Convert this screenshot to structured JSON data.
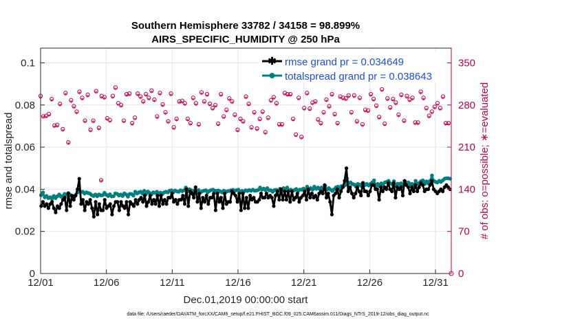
{
  "chart_data": {
    "type": "line",
    "title": "Southern Hemisphere 33782 / 34158 = 98.899%",
    "subtitle": "AIRS_SPECIFIC_HUMIDITY @ 250 hPa",
    "xlabel": "Dec.01,2019 00:00:00 start",
    "ylabel": "rmse and totalspread",
    "ylabel_right": "# of obs: o=possible; ∗=evaluated",
    "footnote": "data file: /Users/raeder/DAI/ATM_forcXX/CAM6_setup/f.e21.FHIST_BGC.f09_025.CAM6assim.011/Diags_NTrS_2019-12/obs_diag_output.nc",
    "xlim": [
      0,
      31.2
    ],
    "ylim": [
      0,
      0.107
    ],
    "ylim_right": [
      0,
      374.5
    ],
    "x_ticks": [
      0,
      5,
      10,
      15,
      20,
      25,
      30
    ],
    "x_tick_labels": [
      "12/01",
      "12/06",
      "12/11",
      "12/16",
      "12/21",
      "12/26",
      "12/31"
    ],
    "y_ticks": [
      0,
      0.02,
      0.04,
      0.06,
      0.08,
      0.1
    ],
    "y_tick_labels": [
      "0",
      "0.02",
      "0.04",
      "0.06",
      "0.08",
      "0.1"
    ],
    "y_ticks_right": [
      0,
      70,
      140,
      210,
      280,
      350
    ],
    "y_tick_labels_right": [
      "0",
      "70",
      "140",
      "210",
      "280",
      "350"
    ],
    "colors": {
      "rmse": "#000000",
      "spread": "#008080",
      "obs": "#c4004a",
      "legend_text": "#1a4fe0",
      "axis": "#262626"
    },
    "series": [
      {
        "name": "rmse grand pr = 0.034649",
        "values": [
          0.032,
          0.034,
          0.032,
          0.033,
          0.031,
          0.033,
          0.034,
          0.031,
          0.029,
          0.032,
          0.031,
          0.033,
          0.035,
          0.036,
          0.03,
          0.038,
          0.032,
          0.037,
          0.035,
          0.037,
          0.04,
          0.045,
          0.033,
          0.035,
          0.03,
          0.034,
          0.033,
          0.035,
          0.031,
          0.027,
          0.034,
          0.028,
          0.033,
          0.03,
          0.03,
          0.035,
          0.031,
          0.032,
          0.033,
          0.028,
          0.032,
          0.034,
          0.034,
          0.03,
          0.034,
          0.032,
          0.031,
          0.034,
          0.028,
          0.034,
          0.033,
          0.032,
          0.035,
          0.033,
          0.035,
          0.036,
          0.034,
          0.037,
          0.032,
          0.034,
          0.037,
          0.033,
          0.035,
          0.033,
          0.037,
          0.032,
          0.037,
          0.033,
          0.035,
          0.033,
          0.036,
          0.036,
          0.038,
          0.034,
          0.035,
          0.033,
          0.035,
          0.035,
          0.037,
          0.033,
          0.04,
          0.032,
          0.039,
          0.038,
          0.036,
          0.041,
          0.034,
          0.038,
          0.031,
          0.036,
          0.034,
          0.037,
          0.033,
          0.036,
          0.036,
          0.038,
          0.03,
          0.038,
          0.034,
          0.036,
          0.031,
          0.038,
          0.033,
          0.034,
          0.034,
          0.039,
          0.038,
          0.037,
          0.034,
          0.038,
          0.03,
          0.038,
          0.031,
          0.036,
          0.031,
          0.037,
          0.035,
          0.036,
          0.034,
          0.034,
          0.035,
          0.038,
          0.036,
          0.036,
          0.038,
          0.036,
          0.037,
          0.036,
          0.032,
          0.037,
          0.039,
          0.035,
          0.04,
          0.035,
          0.039,
          0.035,
          0.039,
          0.034,
          0.039,
          0.035,
          0.036,
          0.038,
          0.034,
          0.036,
          0.037,
          0.039,
          0.035,
          0.04,
          0.036,
          0.038,
          0.036,
          0.037,
          0.035,
          0.038,
          0.039,
          0.038,
          0.042,
          0.036,
          0.038,
          0.034,
          0.028,
          0.037,
          0.038,
          0.04,
          0.036,
          0.039,
          0.041,
          0.044,
          0.05,
          0.039,
          0.041,
          0.038,
          0.036,
          0.038,
          0.041,
          0.039,
          0.037,
          0.043,
          0.039,
          0.039,
          0.037,
          0.039,
          0.042,
          0.042,
          0.04,
          0.04,
          0.035,
          0.041,
          0.039,
          0.041,
          0.04,
          0.043,
          0.04,
          0.039,
          0.043,
          0.036,
          0.041,
          0.04,
          0.041,
          0.037,
          0.044,
          0.042,
          0.041,
          0.038,
          0.041,
          0.039,
          0.042,
          0.039,
          0.041,
          0.043,
          0.042,
          0.039,
          0.04,
          0.04,
          0.042,
          0.044,
          0.04,
          0.039,
          0.038,
          0.039,
          0.04,
          0.039,
          0.041,
          0.042,
          0.041,
          0.04
        ]
      },
      {
        "name": "totalspread grand pr = 0.038643",
        "values": [
          0.0372,
          0.0385,
          0.0362,
          0.0368,
          0.0358,
          0.0362,
          0.0355,
          0.0368,
          0.0358,
          0.0367,
          0.0375,
          0.0365,
          0.0368,
          0.0378,
          0.0374,
          0.0382,
          0.0374,
          0.0368,
          0.0366,
          0.0372,
          0.0384,
          0.0395,
          0.0387,
          0.0388,
          0.038,
          0.0385,
          0.0382,
          0.0379,
          0.0372,
          0.0368,
          0.0375,
          0.0367,
          0.0375,
          0.0371,
          0.0372,
          0.0383,
          0.0374,
          0.0368,
          0.0376,
          0.0366,
          0.0367,
          0.038,
          0.0378,
          0.037,
          0.0375,
          0.0368,
          0.038,
          0.0375,
          0.0365,
          0.0378,
          0.0377,
          0.037,
          0.0388,
          0.038,
          0.0385,
          0.0388,
          0.038,
          0.0392,
          0.0378,
          0.0389,
          0.0382,
          0.0376,
          0.0385,
          0.0383,
          0.0388,
          0.0375,
          0.0384,
          0.0378,
          0.0385,
          0.0388,
          0.0385,
          0.0393,
          0.0395,
          0.0385,
          0.0394,
          0.039,
          0.0388,
          0.0395,
          0.0391,
          0.0395,
          0.0408,
          0.039,
          0.04,
          0.0395,
          0.0384,
          0.0396,
          0.0394,
          0.0396,
          0.0384,
          0.039,
          0.0393,
          0.0395,
          0.0385,
          0.0392,
          0.0396,
          0.0398,
          0.0393,
          0.0392,
          0.0394,
          0.039,
          0.0385,
          0.0393,
          0.0387,
          0.0391,
          0.0392,
          0.0395,
          0.0397,
          0.0393,
          0.0395,
          0.0398,
          0.0387,
          0.0392,
          0.0388,
          0.0395,
          0.0392,
          0.0396,
          0.0393,
          0.0398,
          0.0393,
          0.0394,
          0.0397,
          0.0408,
          0.0398,
          0.0403,
          0.0396,
          0.0405,
          0.0395,
          0.0395,
          0.0388,
          0.0396,
          0.0397,
          0.0392,
          0.0402,
          0.0392,
          0.0405,
          0.0392,
          0.0408,
          0.0395,
          0.0398,
          0.0392,
          0.0396,
          0.0401,
          0.0392,
          0.0398,
          0.0398,
          0.0403,
          0.0398,
          0.0412,
          0.0398,
          0.0405,
          0.0398,
          0.0412,
          0.0402,
          0.0408,
          0.04,
          0.0408,
          0.0405,
          0.0415,
          0.0398,
          0.0405,
          0.0398,
          0.0392,
          0.04,
          0.0409,
          0.0412,
          0.0402,
          0.0415,
          0.0412,
          0.042,
          0.0452,
          0.0428,
          0.0432,
          0.0425,
          0.0422,
          0.0413,
          0.0425,
          0.0422,
          0.0415,
          0.043,
          0.042,
          0.0425,
          0.0418,
          0.0425,
          0.0432,
          0.0442,
          0.0415,
          0.0425,
          0.0416,
          0.0428,
          0.0424,
          0.0432,
          0.0435,
          0.044,
          0.0428,
          0.0424,
          0.0438,
          0.0418,
          0.0426,
          0.0425,
          0.0428,
          0.042,
          0.0438,
          0.043,
          0.0432,
          0.0424,
          0.0425,
          0.0418,
          0.044,
          0.0425,
          0.043,
          0.0438,
          0.0442,
          0.0425,
          0.0437,
          0.0428,
          0.044,
          0.0465,
          0.044,
          0.0435,
          0.0432,
          0.044,
          0.0435,
          0.0442,
          0.045,
          0.0452,
          0.0452,
          0.045
        ]
      },
      {
        "name": "obs possible",
        "marker": "o",
        "values": [
          295,
          261,
          262,
          265,
          290,
          246,
          247,
          282,
          240,
          300,
          218,
          288,
          278,
          269,
          302,
          292,
          254,
          297,
          239,
          254,
          303,
          242,
          295,
          293,
          258,
          255,
          295,
          309,
          283,
          280,
          254,
          298,
          299,
          250,
          259,
          299,
          294,
          286,
          298,
          292,
          304,
          289,
          261,
          300,
          281,
          268,
          253,
          299,
          243,
          257,
          286,
          287,
          283,
          257,
          250,
          292,
          283,
          248,
          301,
          286,
          298,
          282,
          275,
          280,
          249,
          298,
          261,
          272,
          291,
          286,
          264,
          239,
          257,
          253,
          294,
          282,
          243,
          268,
          241,
          257,
          269,
          235,
          259,
          288,
          293,
          283,
          248,
          248,
          300,
          298,
          298,
          257,
          231,
          292,
          227,
          275,
          300,
          274,
          284,
          286,
          256,
          250,
          268,
          289,
          278,
          298,
          265,
          250,
          294,
          292,
          291,
          296,
          268,
          296,
          253,
          292,
          248,
          272,
          271,
          298,
          290,
          279,
          260,
          306,
          249,
          291,
          276,
          290,
          284,
          264,
          297,
          254,
          295,
          289,
          292,
          251,
          251,
          302,
          292,
          275,
          262,
          269,
          277,
          283,
          275,
          294,
          250,
          250
        ]
      },
      {
        "name": "obs evaluated",
        "marker": "*",
        "values": [
          292,
          259,
          259,
          262,
          287,
          243,
          244,
          279,
          237,
          297,
          215,
          285,
          275,
          266,
          299,
          289,
          251,
          294,
          236,
          251,
          300,
          239,
          292,
          290,
          255,
          252,
          292,
          306,
          280,
          277,
          251,
          295,
          296,
          247,
          256,
          296,
          291,
          283,
          295,
          289,
          301,
          286,
          258,
          297,
          278,
          265,
          250,
          296,
          240,
          254,
          283,
          284,
          280,
          254,
          247,
          289,
          280,
          245,
          298,
          283,
          295,
          279,
          272,
          277,
          246,
          295,
          258,
          269,
          288,
          283,
          261,
          236,
          254,
          250,
          291,
          279,
          240,
          265,
          238,
          254,
          266,
          232,
          256,
          285,
          290,
          280,
          245,
          245,
          297,
          295,
          295,
          254,
          228,
          289,
          224,
          272,
          297,
          271,
          281,
          283,
          253,
          247,
          265,
          286,
          275,
          295,
          262,
          247,
          291,
          289,
          288,
          293,
          265,
          293,
          250,
          289,
          245,
          269,
          268,
          295,
          287,
          276,
          257,
          303,
          246,
          288,
          273,
          287,
          281,
          261,
          294,
          251,
          292,
          286,
          289,
          248,
          248,
          299,
          289,
          272,
          259,
          266,
          274,
          280,
          272,
          291,
          247,
          247
        ]
      }
    ],
    "outlier_obs": {
      "x": 4.6,
      "value": 155
    },
    "legend": [
      "rmse grand pr = 0.034649",
      "totalspread grand pr = 0.038643"
    ],
    "legend_position": "top-right"
  }
}
